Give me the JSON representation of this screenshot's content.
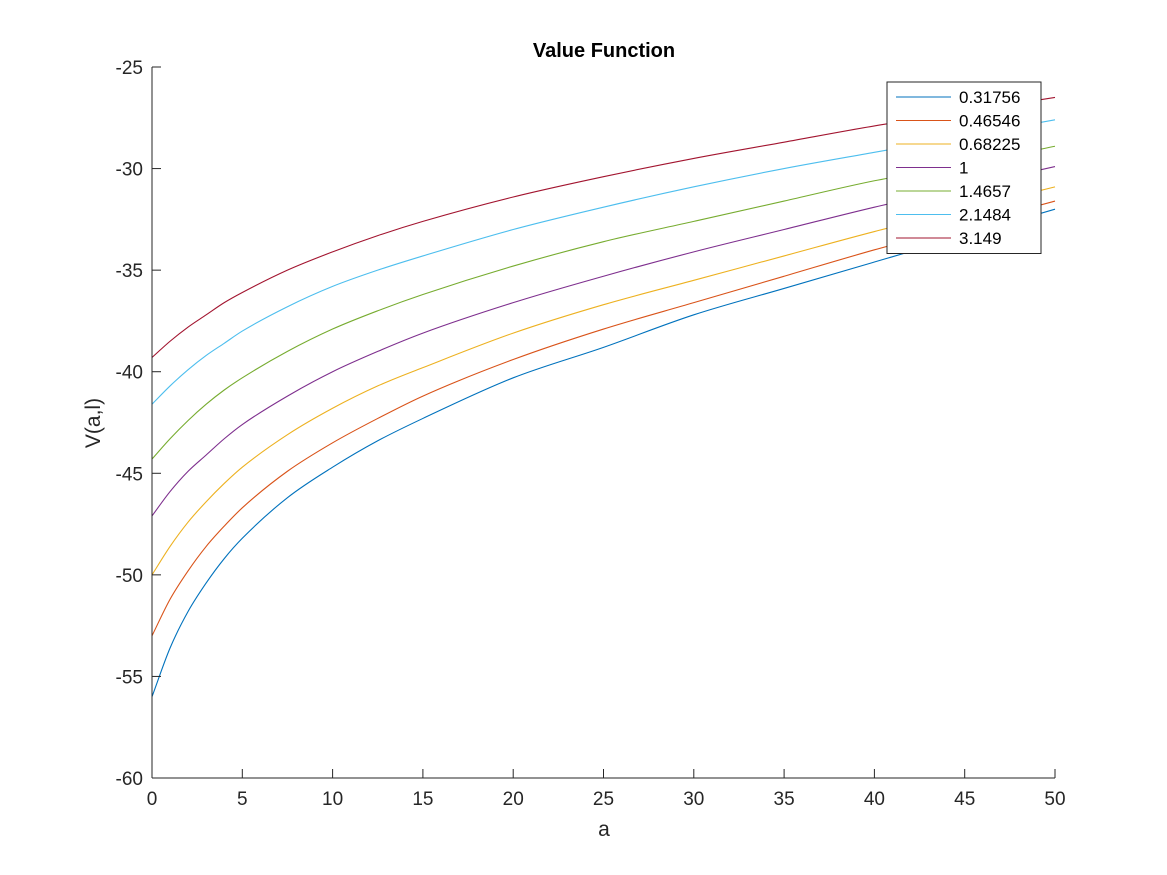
{
  "chart_data": {
    "type": "line",
    "title": "Value Function",
    "xlabel": "a",
    "ylabel": "V(a,l)",
    "xlim": [
      0,
      50
    ],
    "ylim": [
      -60,
      -25
    ],
    "xticks": [
      0,
      5,
      10,
      15,
      20,
      25,
      30,
      35,
      40,
      45,
      50
    ],
    "yticks": [
      -60,
      -55,
      -50,
      -45,
      -40,
      -35,
      -30,
      -25
    ],
    "grid": false,
    "legend_position": "top-right",
    "x": [
      0,
      1,
      2,
      3,
      4,
      5,
      7.5,
      10,
      12.5,
      15,
      20,
      25,
      30,
      35,
      40,
      45,
      50
    ],
    "series": [
      {
        "name": "0.31756",
        "color": "#0072BD",
        "values": [
          -56.0,
          -53.6,
          -51.8,
          -50.4,
          -49.2,
          -48.2,
          -46.2,
          -44.7,
          -43.4,
          -42.3,
          -40.3,
          -38.8,
          -37.2,
          -35.9,
          -34.6,
          -33.3,
          -32.0
        ]
      },
      {
        "name": "0.46546",
        "color": "#D95319",
        "values": [
          -53.0,
          -51.2,
          -49.8,
          -48.6,
          -47.6,
          -46.7,
          -44.9,
          -43.5,
          -42.3,
          -41.2,
          -39.4,
          -37.9,
          -36.6,
          -35.3,
          -34.0,
          -32.8,
          -31.6
        ]
      },
      {
        "name": "0.68225",
        "color": "#EDB120",
        "values": [
          -50.0,
          -48.6,
          -47.4,
          -46.4,
          -45.5,
          -44.7,
          -43.1,
          -41.8,
          -40.7,
          -39.8,
          -38.1,
          -36.7,
          -35.5,
          -34.3,
          -33.1,
          -32.0,
          -30.9
        ]
      },
      {
        "name": "1",
        "color": "#7E2F8E",
        "values": [
          -47.1,
          -45.9,
          -44.9,
          -44.1,
          -43.3,
          -42.6,
          -41.2,
          -40.0,
          -39.0,
          -38.1,
          -36.6,
          -35.3,
          -34.1,
          -33.0,
          -31.9,
          -30.9,
          -29.9
        ]
      },
      {
        "name": "1.4657",
        "color": "#77AC30",
        "values": [
          -44.3,
          -43.3,
          -42.4,
          -41.6,
          -40.9,
          -40.3,
          -39.0,
          -37.9,
          -37.0,
          -36.2,
          -34.8,
          -33.6,
          -32.6,
          -31.6,
          -30.6,
          -29.8,
          -28.9
        ]
      },
      {
        "name": "2.1484",
        "color": "#4DBEEE",
        "values": [
          -41.6,
          -40.7,
          -39.9,
          -39.2,
          -38.6,
          -38.0,
          -36.8,
          -35.8,
          -35.0,
          -34.3,
          -33.0,
          -31.9,
          -30.9,
          -30.0,
          -29.2,
          -28.4,
          -27.6
        ]
      },
      {
        "name": "3.149",
        "color": "#A2142F",
        "values": [
          -39.3,
          -38.5,
          -37.8,
          -37.2,
          -36.6,
          -36.1,
          -35.0,
          -34.1,
          -33.3,
          -32.6,
          -31.4,
          -30.4,
          -29.5,
          -28.7,
          -27.9,
          -27.2,
          -26.5
        ]
      }
    ]
  }
}
